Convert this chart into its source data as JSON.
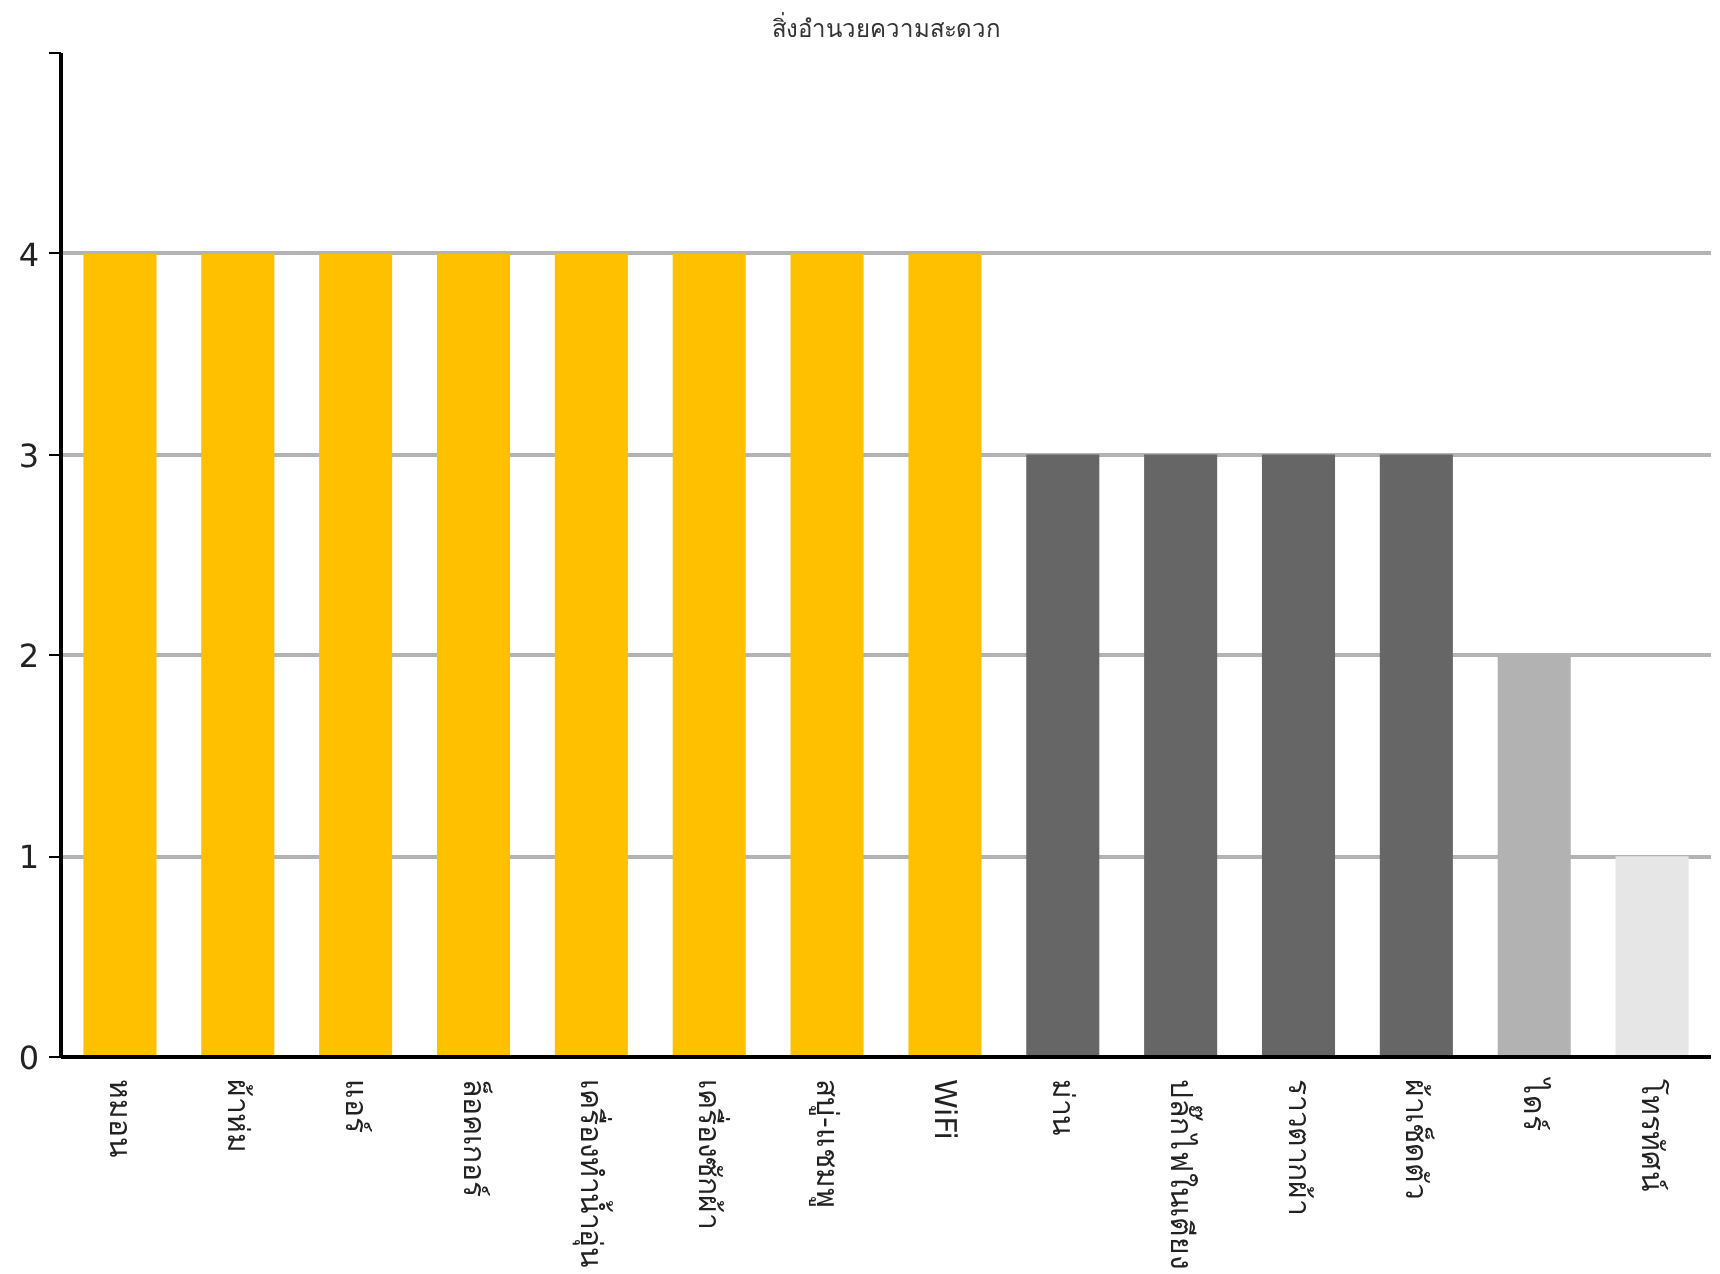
{
  "chart_data": {
    "type": "bar",
    "title": "สิ่งอำนวยความสะดวก",
    "categories": [
      "หมอน",
      "ผ้าห่ม",
      "แอร์",
      "ล็อคเกอร์",
      "เครื่องทำน้ำอุ่น",
      "เครื่องซักผ้า",
      "สบู่-แชมพู",
      "WiFi",
      "ม่าน",
      "ปลั๊กไฟในเตียง",
      "ราวตากผ้า",
      "ผ้าเช็ดตัว",
      "ไดร์",
      "โทรทัศน์"
    ],
    "values": [
      4,
      4,
      4,
      4,
      4,
      4,
      4,
      4,
      3,
      3,
      3,
      3,
      2,
      1
    ],
    "colors": [
      "#ffc000",
      "#ffc000",
      "#ffc000",
      "#ffc000",
      "#ffc000",
      "#ffc000",
      "#ffc000",
      "#ffc000",
      "#666666",
      "#666666",
      "#666666",
      "#666666",
      "#b2b2b2",
      "#e6e6e6"
    ],
    "ylim": [
      0,
      5
    ],
    "yticks": [
      0,
      1,
      2,
      3,
      4,
      {
        "value": 5,
        "label": null
      }
    ],
    "grid": "y"
  }
}
